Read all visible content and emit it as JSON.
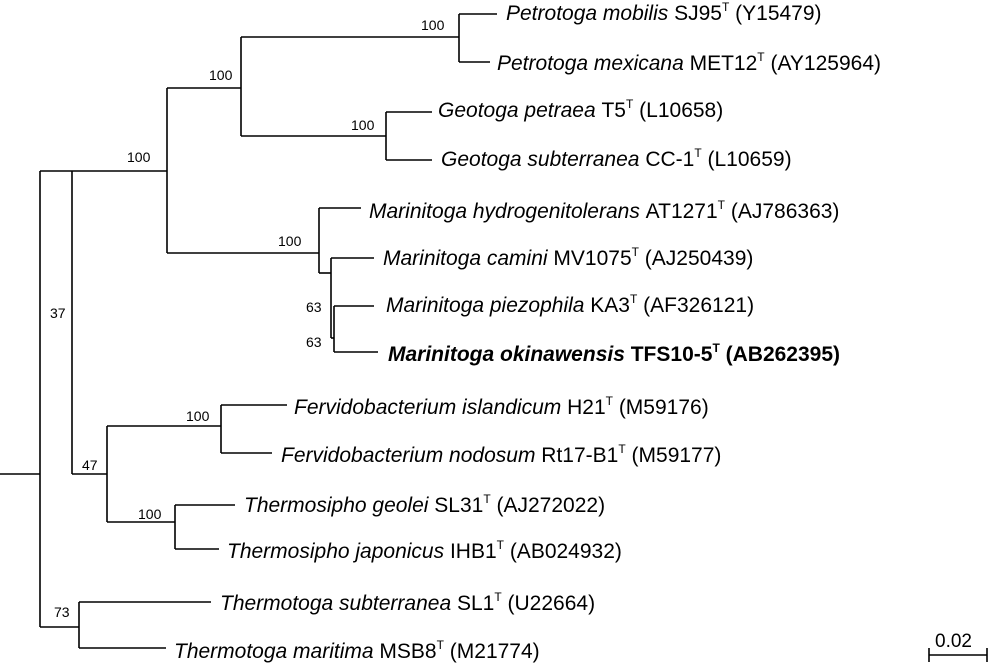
{
  "tree": {
    "taxa": [
      {
        "genus_species": "Petrotoga mobilis",
        "strain": "SJ95",
        "type_mark": "T",
        "accession": "(Y15479)",
        "bold": false
      },
      {
        "genus_species": "Petrotoga mexicana",
        "strain": "MET12",
        "type_mark": "T",
        "accession": "(AY125964)",
        "bold": false
      },
      {
        "genus_species": "Geotoga petraea",
        "strain": "T5",
        "type_mark": "T",
        "accession": "(L10658)",
        "bold": false
      },
      {
        "genus_species": "Geotoga subterranea",
        "strain": "CC-1",
        "type_mark": "T",
        "accession": "(L10659)",
        "bold": false
      },
      {
        "genus_species": "Marinitoga hydrogenitolerans",
        "strain": "AT1271",
        "type_mark": "T",
        "accession": "(AJ786363)",
        "bold": false
      },
      {
        "genus_species": "Marinitoga camini",
        "strain": "MV1075",
        "type_mark": "T",
        "accession": "(AJ250439)",
        "bold": false
      },
      {
        "genus_species": "Marinitoga piezophila",
        "strain": "KA3",
        "type_mark": "T",
        "accession": "(AF326121)",
        "bold": false
      },
      {
        "genus_species": "Marinitoga okinawensis",
        "strain": "TFS10-5",
        "type_mark": "T",
        "accession": "(AB262395)",
        "bold": true
      },
      {
        "genus_species": "Fervidobacterium islandicum",
        "strain": "H21",
        "type_mark": "T",
        "accession": "(M59176)",
        "bold": false
      },
      {
        "genus_species": "Fervidobacterium nodosum",
        "strain": "Rt17-B1",
        "type_mark": "T",
        "accession": "(M59177)",
        "bold": false
      },
      {
        "genus_species": "Thermosipho geolei",
        "strain": "SL31",
        "type_mark": "T",
        "accession": "(AJ272022)",
        "bold": false
      },
      {
        "genus_species": "Thermosipho japonicus",
        "strain": "IHB1",
        "type_mark": "T",
        "accession": "(AB024932)",
        "bold": false
      },
      {
        "genus_species": "Thermotoga subterranea",
        "strain": "SL1",
        "type_mark": "T",
        "accession": "(U22664)",
        "bold": false
      },
      {
        "genus_species": "Thermotoga maritima",
        "strain": "MSB8",
        "type_mark": "T",
        "accession": "(M21774)",
        "bold": false
      }
    ],
    "bootstrap": {
      "petrotoga": "100",
      "petrotoga_geotoga": "100",
      "geotoga": "100",
      "petro_geo_marini": "100",
      "marinitoga": "100",
      "marini_inner_a": "63",
      "marini_inner_b": "63",
      "fervido_thermosipho_marini": "37",
      "fervido_thermosipho": "47",
      "fervidobacterium": "100",
      "thermosipho": "100",
      "thermotoga": "73"
    },
    "scale_bar": {
      "label": "0.02"
    }
  }
}
